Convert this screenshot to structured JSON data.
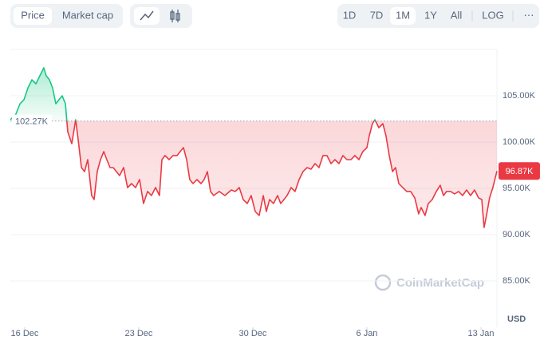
{
  "toolbar": {
    "metric_tabs": [
      "Price",
      "Market cap"
    ],
    "selected_metric": 0,
    "ranges": [
      "1D",
      "7D",
      "1M",
      "1Y",
      "All"
    ],
    "selected_range": 2,
    "log": "LOG",
    "more": "⋯"
  },
  "chart_data": {
    "type": "line",
    "currency": "USD",
    "watermark": "CoinMarketCap",
    "colors": {
      "up": "#16c784",
      "down": "#ea3943"
    },
    "baseline": {
      "value": 102.27,
      "label": "102.27K"
    },
    "last": {
      "value": 96.87,
      "label": "96.87K"
    },
    "xlim": [
      15.12,
      44.98
    ],
    "ylim": [
      80,
      110
    ],
    "xticks": [
      {
        "value": 16,
        "label": "16 Dec"
      },
      {
        "value": 23,
        "label": "23 Dec"
      },
      {
        "value": 30,
        "label": "30 Dec"
      },
      {
        "value": 37,
        "label": "6 Jan"
      },
      {
        "value": 44,
        "label": "13 Jan"
      }
    ],
    "yticks": [
      {
        "value": 85,
        "label": "85.00K"
      },
      {
        "value": 90,
        "label": "90.00K"
      },
      {
        "value": 95,
        "label": "95.00K"
      },
      {
        "value": 100,
        "label": "100.00K"
      },
      {
        "value": 105,
        "label": "105.00K"
      }
    ],
    "grid": true,
    "x": [
      15.12,
      15.46,
      15.71,
      15.95,
      16.2,
      16.44,
      16.69,
      16.93,
      17.17,
      17.32,
      17.52,
      17.71,
      17.91,
      18.1,
      18.3,
      18.5,
      18.64,
      18.89,
      19.13,
      19.28,
      19.48,
      19.67,
      19.87,
      20.11,
      20.26,
      20.45,
      20.65,
      20.85,
      21.04,
      21.24,
      21.43,
      21.63,
      21.82,
      22.07,
      22.31,
      22.56,
      22.8,
      23.05,
      23.29,
      23.54,
      23.78,
      24.03,
      24.27,
      24.42,
      24.61,
      24.86,
      25.1,
      25.35,
      25.54,
      25.74,
      25.94,
      26.13,
      26.33,
      26.57,
      26.82,
      27.01,
      27.21,
      27.4,
      27.6,
      27.94,
      28.29,
      28.68,
      28.92,
      29.17,
      29.41,
      29.66,
      29.9,
      30.15,
      30.39,
      30.64,
      30.83,
      31.03,
      31.27,
      31.52,
      31.71,
      31.91,
      32.1,
      32.35,
      32.59,
      32.84,
      33.08,
      33.33,
      33.57,
      33.82,
      34.06,
      34.31,
      34.55,
      34.8,
      35.04,
      35.29,
      35.53,
      35.77,
      36.02,
      36.26,
      36.51,
      36.75,
      37.0,
      37.15,
      37.34,
      37.49,
      37.73,
      37.98,
      38.17,
      38.37,
      38.57,
      38.76,
      38.96,
      39.2,
      39.45,
      39.69,
      39.94,
      40.18,
      40.33,
      40.57,
      40.77,
      41.01,
      41.26,
      41.5,
      41.7,
      41.89,
      42.14,
      42.38,
      42.63,
      42.87,
      43.12,
      43.36,
      43.61,
      43.85,
      44.05,
      44.19,
      44.34,
      44.53,
      44.73,
      44.98
    ],
    "values": [
      102.41,
      103.02,
      104.14,
      104.57,
      105.86,
      106.72,
      106.29,
      107.16,
      108.02,
      107.16,
      106.72,
      105.86,
      104.14,
      104.57,
      105.0,
      104.14,
      101.12,
      99.83,
      102.41,
      100.26,
      97.24,
      96.81,
      98.1,
      94.22,
      93.79,
      96.81,
      98.1,
      98.97,
      98.1,
      97.24,
      97.24,
      96.81,
      96.38,
      97.24,
      95.09,
      95.52,
      95.09,
      95.95,
      93.36,
      94.66,
      94.22,
      95.09,
      94.22,
      98.1,
      98.54,
      98.1,
      98.54,
      98.54,
      98.97,
      99.4,
      98.1,
      95.95,
      95.52,
      95.95,
      95.52,
      95.95,
      96.81,
      94.66,
      94.22,
      94.66,
      94.22,
      94.83,
      94.66,
      95.09,
      93.79,
      93.36,
      94.22,
      92.5,
      92.07,
      94.22,
      92.5,
      93.79,
      93.36,
      94.22,
      93.36,
      93.79,
      94.22,
      95.09,
      94.66,
      95.95,
      96.81,
      97.24,
      97.07,
      97.67,
      97.24,
      98.54,
      98.54,
      97.67,
      98.1,
      97.67,
      98.54,
      98.1,
      98.1,
      98.54,
      98.1,
      98.97,
      99.4,
      100.69,
      101.98,
      102.41,
      101.55,
      101.98,
      100.69,
      98.54,
      96.81,
      97.24,
      95.52,
      95.09,
      94.66,
      94.66,
      93.97,
      92.24,
      92.93,
      92.07,
      93.36,
      93.79,
      94.66,
      95.34,
      94.22,
      94.66,
      94.66,
      94.4,
      94.66,
      94.22,
      94.83,
      94.22,
      94.83,
      93.97,
      93.79,
      90.78,
      92.07,
      93.97,
      95.09,
      96.87
    ]
  }
}
